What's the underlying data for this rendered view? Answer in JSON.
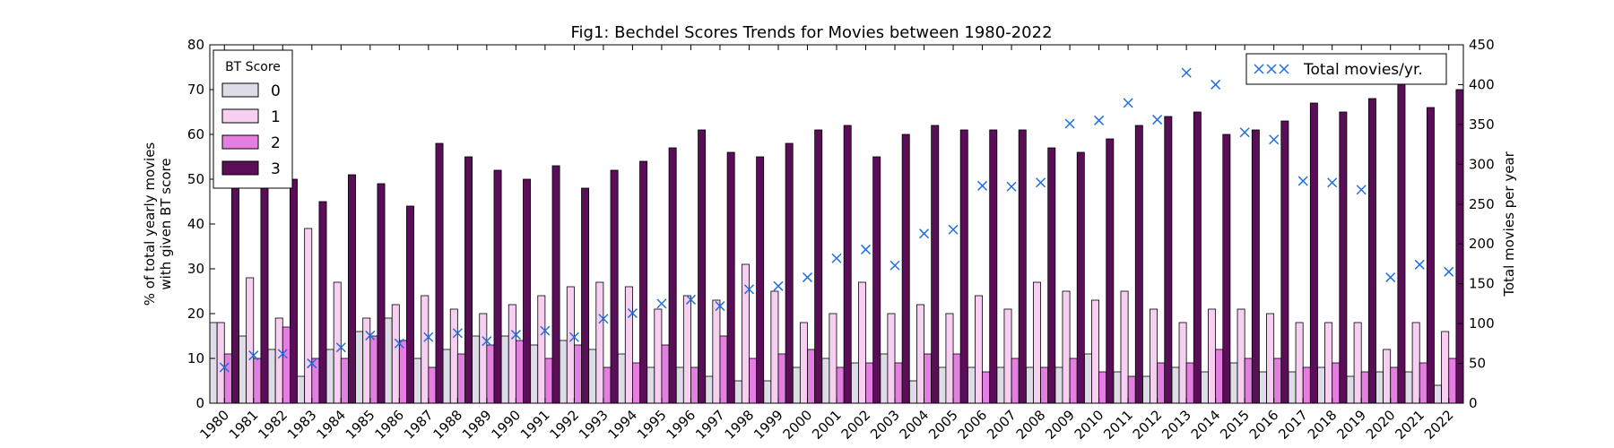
{
  "chart_data": {
    "type": "bar",
    "title": "Fig1: Bechdel Scores Trends for Movies between 1980-2022",
    "ylabel_left_line1": "% of total yearly movies",
    "ylabel_left_line2": "with given BT score",
    "ylabel_right": "Total movies per year",
    "categories": [
      "1980",
      "1981",
      "1982",
      "1983",
      "1984",
      "1985",
      "1986",
      "1987",
      "1988",
      "1989",
      "1990",
      "1991",
      "1992",
      "1993",
      "1994",
      "1995",
      "1996",
      "1997",
      "1998",
      "1999",
      "2000",
      "2001",
      "2002",
      "2003",
      "2004",
      "2005",
      "2006",
      "2007",
      "2008",
      "2009",
      "2010",
      "2011",
      "2012",
      "2013",
      "2014",
      "2015",
      "2016",
      "2017",
      "2018",
      "2019",
      "2020",
      "2021",
      "2022"
    ],
    "ylim_left": [
      0,
      80
    ],
    "yticks_left": [
      "0",
      "10",
      "20",
      "30",
      "40",
      "50",
      "60",
      "70",
      "80"
    ],
    "ylim_right": [
      0,
      450
    ],
    "yticks_right": [
      "0",
      "50",
      "100",
      "150",
      "200",
      "250",
      "300",
      "350",
      "400",
      "450"
    ],
    "legend_title": "BT Score",
    "legend_placement": "top-left",
    "series": [
      {
        "name": "0",
        "color": "#dcdde6",
        "values": [
          18,
          15,
          12,
          6,
          12,
          16,
          19,
          10,
          12,
          15,
          15,
          13,
          14,
          12,
          11,
          8,
          8,
          6,
          5,
          5,
          8,
          10,
          9,
          11,
          5,
          8,
          8,
          8,
          8,
          8,
          11,
          7,
          6,
          8,
          7,
          9,
          7,
          7,
          8,
          6,
          7,
          7,
          4
        ]
      },
      {
        "name": "1",
        "color": "#f6cff1",
        "values": [
          18,
          28,
          19,
          39,
          27,
          19,
          22,
          24,
          21,
          20,
          22,
          24,
          26,
          27,
          26,
          21,
          24,
          23,
          31,
          25,
          18,
          20,
          27,
          20,
          22,
          20,
          24,
          21,
          27,
          25,
          23,
          25,
          21,
          18,
          21,
          21,
          20,
          18,
          18,
          18,
          12,
          18,
          16
        ]
      },
      {
        "name": "2",
        "color": "#e47ee0",
        "values": [
          11,
          10,
          17,
          10,
          10,
          15,
          14,
          8,
          11,
          13,
          14,
          10,
          13,
          8,
          9,
          13,
          8,
          15,
          10,
          11,
          12,
          8,
          9,
          9,
          11,
          11,
          7,
          10,
          8,
          10,
          7,
          6,
          9,
          9,
          12,
          10,
          10,
          8,
          9,
          7,
          8,
          9,
          10
        ]
      },
      {
        "name": "3",
        "color": "#5a0e57",
        "values": [
          48,
          48,
          50,
          45,
          51,
          49,
          44,
          58,
          55,
          52,
          50,
          53,
          48,
          52,
          54,
          57,
          61,
          56,
          55,
          58,
          61,
          62,
          55,
          60,
          62,
          61,
          61,
          61,
          57,
          56,
          59,
          62,
          64,
          65,
          60,
          61,
          63,
          67,
          65,
          68,
          74,
          66,
          70
        ]
      }
    ],
    "total_series": {
      "name": "Total movies/yr.",
      "color": "#1f6fe0",
      "values": [
        45,
        60,
        62,
        50,
        70,
        85,
        75,
        83,
        88,
        78,
        86,
        91,
        83,
        106,
        113,
        125,
        130,
        122,
        143,
        147,
        158,
        182,
        193,
        173,
        213,
        218,
        273,
        272,
        277,
        351,
        355,
        377,
        356,
        415,
        400,
        340,
        331,
        279,
        277,
        268,
        158,
        174,
        165
      ]
    }
  }
}
